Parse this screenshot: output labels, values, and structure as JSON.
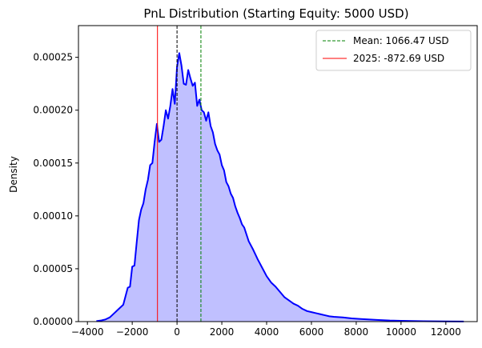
{
  "chart_data": {
    "type": "area",
    "title": "PnL Distribution (Starting Equity: 5000 USD)",
    "xlabel": "",
    "ylabel": "Density",
    "xlim": [
      -4400,
      13400
    ],
    "ylim": [
      0,
      0.00028
    ],
    "x_ticks": [
      -4000,
      -2000,
      0,
      2000,
      4000,
      6000,
      8000,
      10000,
      12000
    ],
    "x_tick_labels": [
      "−4000",
      "−2000",
      "0",
      "2000",
      "4000",
      "6000",
      "8000",
      "10000",
      "12000"
    ],
    "y_ticks": [
      0,
      5e-05,
      0.0001,
      0.00015,
      0.0002,
      0.00025
    ],
    "y_tick_labels": [
      "0.00000",
      "0.00005",
      "0.00010",
      "0.00015",
      "0.00020",
      "0.00025"
    ],
    "grid": false,
    "legend_position": "top-right",
    "series": [
      {
        "color": "#0000ff",
        "fill_color": "#c0c0ff",
        "x": [
          -3600,
          -3400,
          -3200,
          -3000,
          -2800,
          -2600,
          -2400,
          -2200,
          -2100,
          -2000,
          -1900,
          -1800,
          -1700,
          -1600,
          -1500,
          -1400,
          -1300,
          -1200,
          -1100,
          -1000,
          -900,
          -800,
          -700,
          -600,
          -500,
          -400,
          -300,
          -200,
          -100,
          0,
          100,
          200,
          300,
          400,
          500,
          600,
          700,
          800,
          900,
          1000,
          1100,
          1200,
          1300,
          1400,
          1500,
          1600,
          1700,
          1800,
          1900,
          2000,
          2100,
          2200,
          2300,
          2400,
          2500,
          2600,
          2700,
          2800,
          2900,
          3000,
          3200,
          3400,
          3600,
          3800,
          4000,
          4200,
          4400,
          4600,
          4800,
          5000,
          5200,
          5400,
          5600,
          5800,
          6000,
          6200,
          6400,
          6600,
          6800,
          7000,
          7400,
          7800,
          8200,
          8600,
          9000,
          9500,
          10000,
          10500,
          11000,
          11500,
          12000,
          12800
        ],
        "y": [
          5e-07,
          1e-06,
          2e-06,
          4e-06,
          8e-06,
          1.2e-05,
          1.6e-05,
          3.2e-05,
          3.3e-05,
          5.2e-05,
          5.3e-05,
          7.5e-05,
          9.6e-05,
          0.000106,
          0.000112,
          0.000125,
          0.000134,
          0.000148,
          0.00015,
          0.00017,
          0.000187,
          0.00017,
          0.000172,
          0.000185,
          0.0002,
          0.000192,
          0.000204,
          0.00022,
          0.000206,
          0.000241,
          0.000254,
          0.000242,
          0.000225,
          0.000224,
          0.000238,
          0.00023,
          0.000223,
          0.000226,
          0.000204,
          0.00021,
          0.0002,
          0.000198,
          0.00019,
          0.000198,
          0.000185,
          0.000179,
          0.000168,
          0.000162,
          0.000158,
          0.000148,
          0.000143,
          0.000132,
          0.000128,
          0.000121,
          0.000117,
          0.000109,
          0.000103,
          9.8e-05,
          9.2e-05,
          8.9e-05,
          7.6e-05,
          6.8e-05,
          5.9e-05,
          5.1e-05,
          4.3e-05,
          3.7e-05,
          3.3e-05,
          2.8e-05,
          2.3e-05,
          2e-05,
          1.7e-05,
          1.5e-05,
          1.2e-05,
          1e-05,
          9e-06,
          8e-06,
          7e-06,
          6e-06,
          5e-06,
          4.5e-06,
          4e-06,
          3e-06,
          2.5e-06,
          2e-06,
          1.5e-06,
          1e-06,
          8e-07,
          6e-07,
          4e-07,
          3e-07,
          2e-07,
          1e-07
        ]
      }
    ],
    "reference_lines": [
      {
        "x": 1066.47,
        "label": "Mean: 1066.47 USD",
        "color": "#008000",
        "style": "dashed"
      },
      {
        "x": -872.69,
        "label": "2025: -872.69 USD",
        "color": "#ff0000",
        "style": "solid"
      },
      {
        "x": 0,
        "label": "",
        "color": "#000000",
        "style": "dashed"
      }
    ]
  }
}
